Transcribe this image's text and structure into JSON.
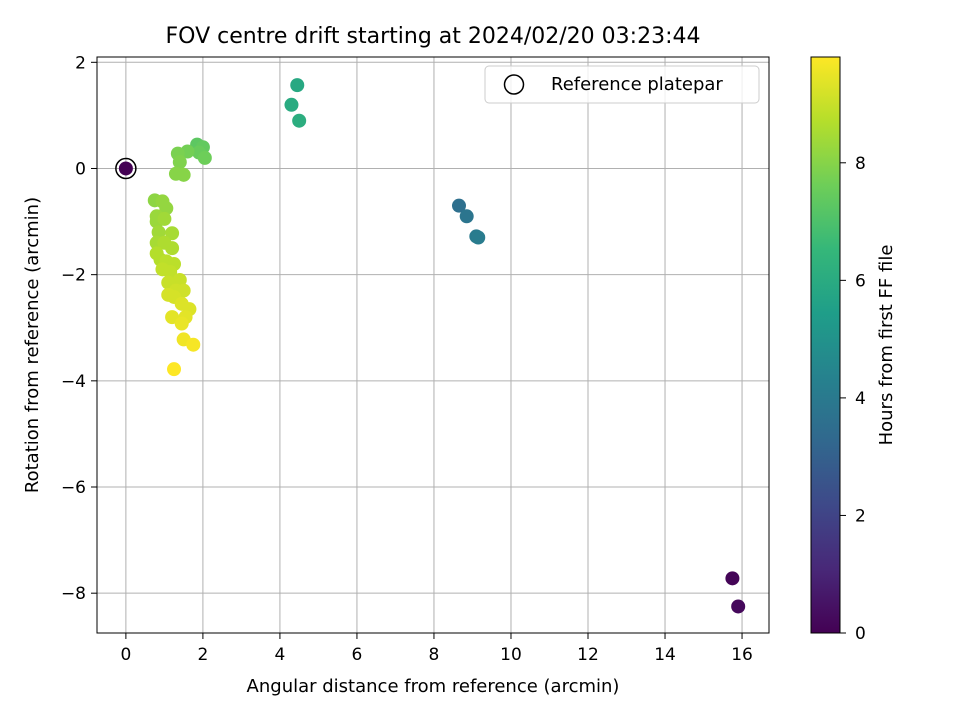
{
  "chart_data": {
    "type": "scatter",
    "title": "FOV centre drift starting at 2024/02/20 03:23:44",
    "xlabel": "Angular distance from reference (arcmin)",
    "ylabel": "Rotation from reference (arcmin)",
    "xlim": [
      -0.75,
      16.7
    ],
    "ylim": [
      -8.75,
      2.1
    ],
    "xticks": [
      0,
      2,
      4,
      6,
      8,
      10,
      12,
      14,
      16
    ],
    "yticks": [
      2,
      0,
      -2,
      -4,
      -6,
      -8
    ],
    "grid": true,
    "legend": {
      "position": "upper-right",
      "entries": [
        "Reference platepar"
      ]
    },
    "reference_point": {
      "x": 0,
      "y": 0,
      "hours": 0
    },
    "colorbar": {
      "label": "Hours from first FF file",
      "min": 0,
      "max": 9.8,
      "ticks": [
        0,
        2,
        4,
        6,
        8
      ],
      "colormap": [
        "#440154",
        "#482878",
        "#3e4989",
        "#31688e",
        "#26828e",
        "#1f9e89",
        "#35b779",
        "#6ece58",
        "#b5de2b",
        "#fde725"
      ]
    },
    "points": [
      {
        "x": 0.0,
        "y": 0.0,
        "hours": 0.0
      },
      {
        "x": 15.75,
        "y": -7.72,
        "hours": 0.1
      },
      {
        "x": 15.9,
        "y": -8.25,
        "hours": 0.2
      },
      {
        "x": 8.65,
        "y": -0.7,
        "hours": 3.6
      },
      {
        "x": 8.85,
        "y": -0.9,
        "hours": 3.8
      },
      {
        "x": 9.1,
        "y": -1.28,
        "hours": 4.0
      },
      {
        "x": 9.15,
        "y": -1.3,
        "hours": 4.1
      },
      {
        "x": 4.45,
        "y": 1.57,
        "hours": 5.9
      },
      {
        "x": 4.3,
        "y": 1.2,
        "hours": 6.0
      },
      {
        "x": 4.5,
        "y": 0.9,
        "hours": 6.1
      },
      {
        "x": 1.85,
        "y": 0.45,
        "hours": 7.3
      },
      {
        "x": 2.0,
        "y": 0.4,
        "hours": 7.4
      },
      {
        "x": 1.9,
        "y": 0.3,
        "hours": 7.5
      },
      {
        "x": 2.05,
        "y": 0.2,
        "hours": 7.6
      },
      {
        "x": 1.6,
        "y": 0.32,
        "hours": 7.7
      },
      {
        "x": 1.35,
        "y": 0.28,
        "hours": 7.8
      },
      {
        "x": 1.4,
        "y": 0.12,
        "hours": 7.9
      },
      {
        "x": 1.3,
        "y": -0.1,
        "hours": 8.0
      },
      {
        "x": 1.5,
        "y": -0.12,
        "hours": 8.0
      },
      {
        "x": 0.75,
        "y": -0.6,
        "hours": 8.1
      },
      {
        "x": 0.95,
        "y": -0.62,
        "hours": 8.2
      },
      {
        "x": 1.05,
        "y": -0.75,
        "hours": 8.2
      },
      {
        "x": 0.8,
        "y": -0.9,
        "hours": 8.3
      },
      {
        "x": 0.8,
        "y": -1.0,
        "hours": 8.3
      },
      {
        "x": 1.0,
        "y": -0.95,
        "hours": 8.4
      },
      {
        "x": 0.85,
        "y": -1.2,
        "hours": 8.4
      },
      {
        "x": 1.2,
        "y": -1.22,
        "hours": 8.5
      },
      {
        "x": 0.8,
        "y": -1.4,
        "hours": 8.5
      },
      {
        "x": 1.0,
        "y": -1.4,
        "hours": 8.6
      },
      {
        "x": 1.2,
        "y": -1.5,
        "hours": 8.6
      },
      {
        "x": 0.8,
        "y": -1.6,
        "hours": 8.7
      },
      {
        "x": 0.9,
        "y": -1.72,
        "hours": 8.7
      },
      {
        "x": 1.05,
        "y": -1.75,
        "hours": 8.8
      },
      {
        "x": 1.25,
        "y": -1.8,
        "hours": 8.8
      },
      {
        "x": 0.95,
        "y": -1.9,
        "hours": 8.9
      },
      {
        "x": 1.15,
        "y": -1.95,
        "hours": 8.9
      },
      {
        "x": 1.4,
        "y": -2.1,
        "hours": 9.0
      },
      {
        "x": 1.1,
        "y": -2.15,
        "hours": 9.0
      },
      {
        "x": 1.3,
        "y": -2.3,
        "hours": 9.1
      },
      {
        "x": 1.5,
        "y": -2.3,
        "hours": 9.1
      },
      {
        "x": 1.1,
        "y": -2.38,
        "hours": 9.2
      },
      {
        "x": 1.25,
        "y": -2.42,
        "hours": 9.2
      },
      {
        "x": 1.45,
        "y": -2.55,
        "hours": 9.3
      },
      {
        "x": 1.65,
        "y": -2.65,
        "hours": 9.3
      },
      {
        "x": 1.55,
        "y": -2.8,
        "hours": 9.4
      },
      {
        "x": 1.2,
        "y": -2.8,
        "hours": 9.4
      },
      {
        "x": 1.45,
        "y": -2.92,
        "hours": 9.5
      },
      {
        "x": 1.5,
        "y": -3.22,
        "hours": 9.6
      },
      {
        "x": 1.75,
        "y": -3.32,
        "hours": 9.7
      },
      {
        "x": 1.25,
        "y": -3.78,
        "hours": 9.8
      }
    ]
  }
}
